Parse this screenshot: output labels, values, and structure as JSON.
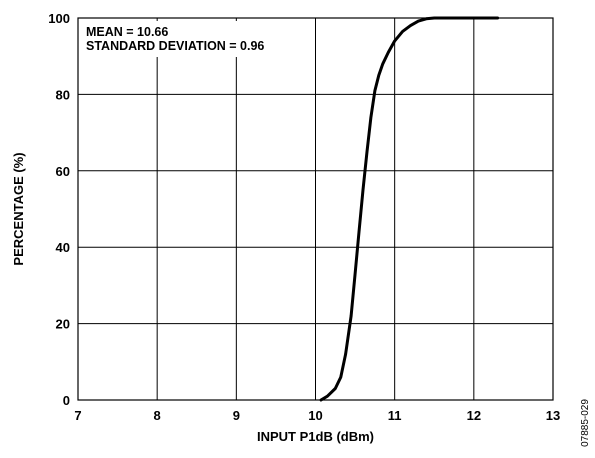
{
  "chart_data": {
    "type": "line",
    "xlabel": "INPUT P1dB (dBm)",
    "ylabel": "PERCENTAGE (%)",
    "xlim": [
      7,
      13
    ],
    "ylim": [
      0,
      100
    ],
    "x_ticks": [
      "7",
      "8",
      "9",
      "10",
      "11",
      "12",
      "13"
    ],
    "y_ticks": [
      "0",
      "20",
      "40",
      "60",
      "80",
      "100"
    ],
    "grid": true,
    "annotations": [
      "MEAN = 10.66",
      "STANDARD DEVIATION = 0.96"
    ],
    "figure_code": "07885-029",
    "series": [
      {
        "x": [
          10.07,
          10.15,
          10.25,
          10.32,
          10.38,
          10.45,
          10.5,
          10.55,
          10.6,
          10.65,
          10.7,
          10.75,
          10.8,
          10.85,
          10.92,
          11.0,
          11.1,
          11.2,
          11.3,
          11.4,
          11.5,
          11.6,
          11.8,
          12.0,
          12.3
        ],
        "y": [
          0,
          1,
          3,
          6,
          12,
          22,
          33,
          44,
          55,
          65,
          74,
          81,
          85,
          88,
          91,
          94,
          96.5,
          98,
          99.2,
          99.8,
          100,
          100,
          100,
          100,
          100
        ]
      }
    ]
  }
}
